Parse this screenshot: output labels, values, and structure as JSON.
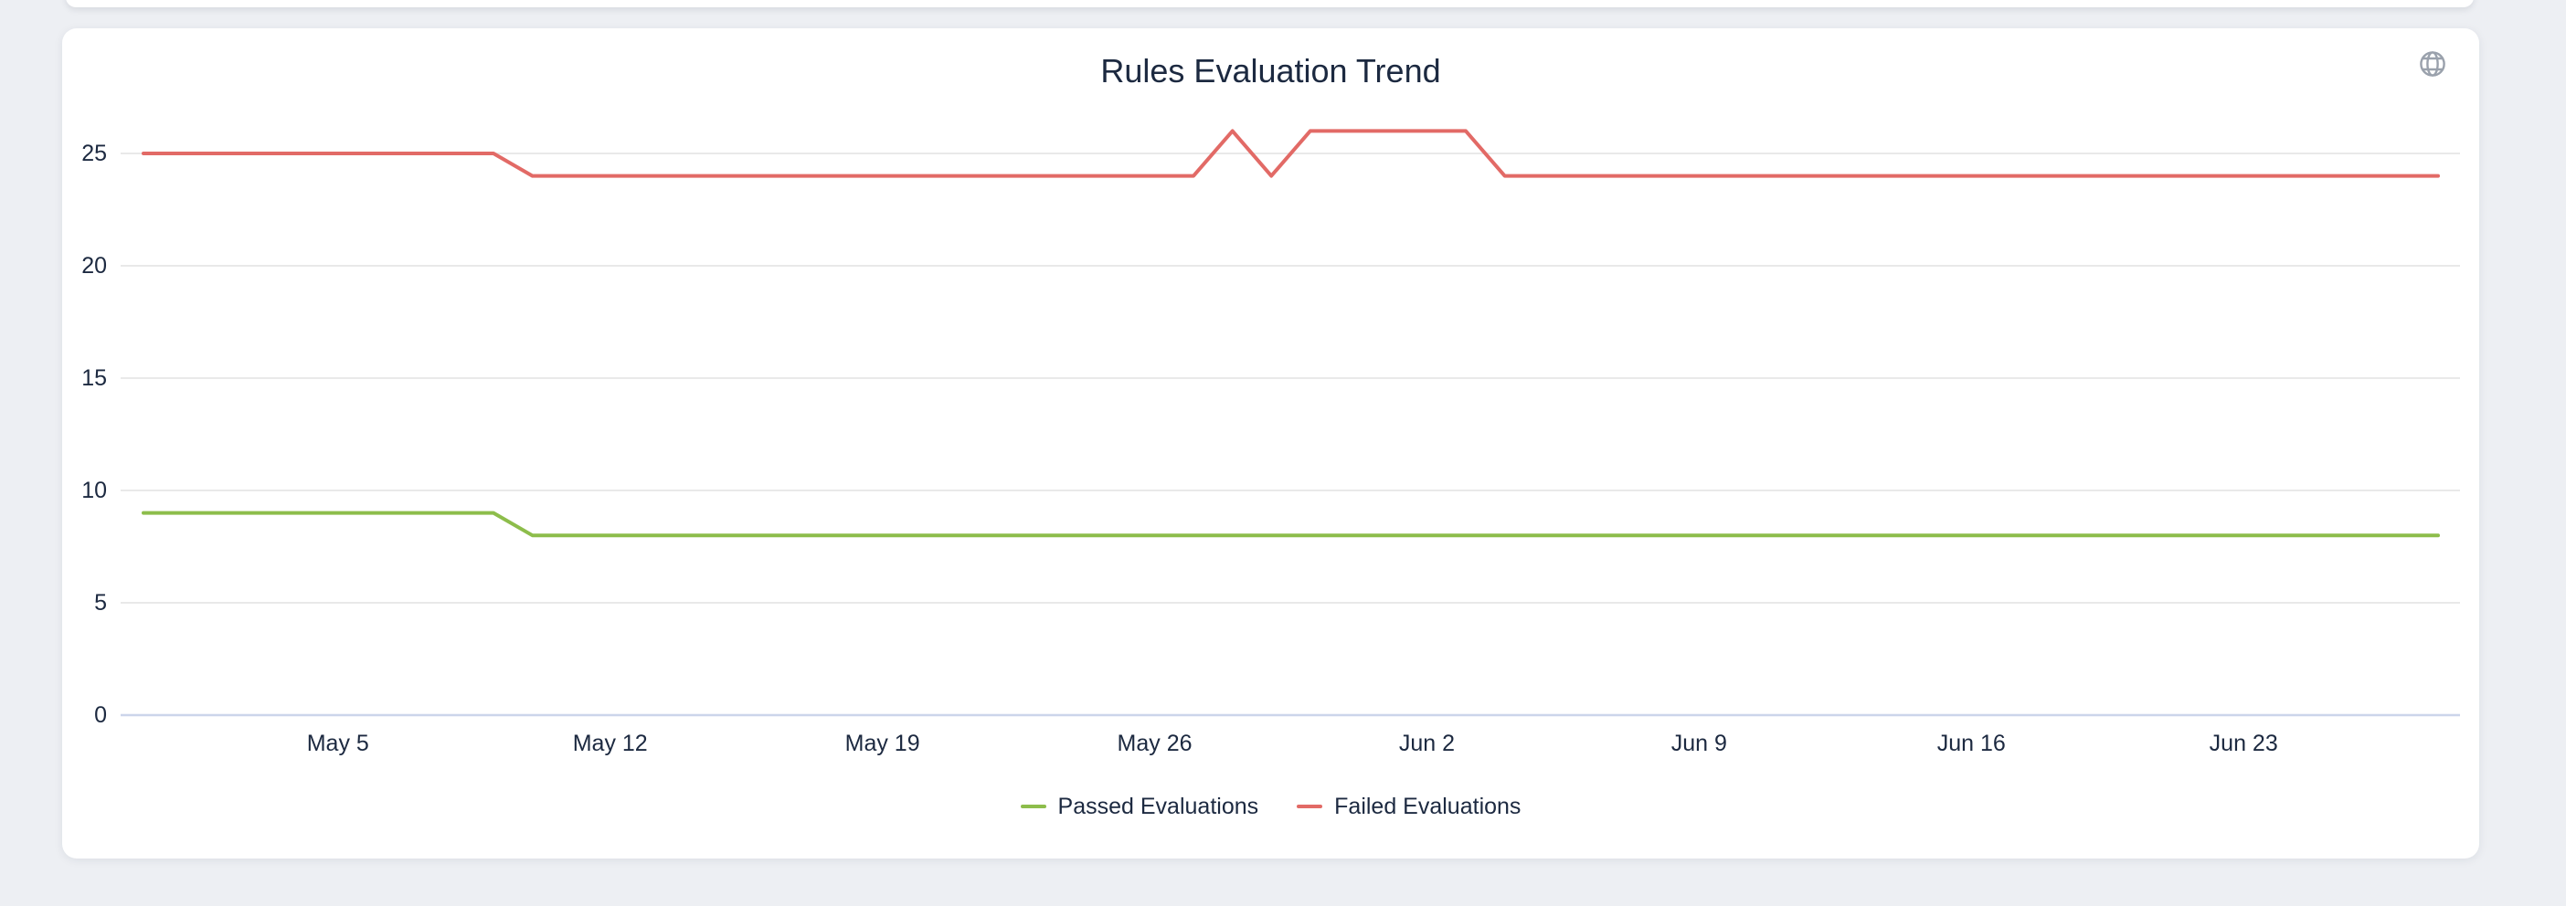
{
  "card": {
    "background": "#ffffff",
    "page_background": "#edeff3"
  },
  "header": {
    "globe_icon_color": "#9aa1ac"
  },
  "chart_data": {
    "type": "line",
    "title": "Rules Evaluation Trend",
    "xlabel": "",
    "ylabel": "",
    "grid": true,
    "legend_position": "bottom",
    "x_type": "time-daily",
    "ylim": [
      0,
      27.5
    ],
    "y_ticks": [
      0,
      5,
      10,
      15,
      20,
      25
    ],
    "tick_indices": [
      5,
      12,
      19,
      26,
      33,
      40,
      47,
      54
    ],
    "tick_labels": [
      "May 5",
      "May 12",
      "May 19",
      "May 26",
      "Jun 2",
      "Jun 9",
      "Jun 16",
      "Jun 23"
    ],
    "dates": [
      "Apr 30",
      "May 1",
      "May 2",
      "May 3",
      "May 4",
      "May 5",
      "May 6",
      "May 7",
      "May 8",
      "May 9",
      "May 10",
      "May 11",
      "May 12",
      "May 13",
      "May 14",
      "May 15",
      "May 16",
      "May 17",
      "May 18",
      "May 19",
      "May 20",
      "May 21",
      "May 22",
      "May 23",
      "May 24",
      "May 25",
      "May 26",
      "May 27",
      "May 28",
      "May 29",
      "May 30",
      "May 31",
      "Jun 1",
      "Jun 2",
      "Jun 3",
      "Jun 4",
      "Jun 5",
      "Jun 6",
      "Jun 7",
      "Jun 8",
      "Jun 9",
      "Jun 10",
      "Jun 11",
      "Jun 12",
      "Jun 13",
      "Jun 14",
      "Jun 15",
      "Jun 16",
      "Jun 17",
      "Jun 18",
      "Jun 19",
      "Jun 20",
      "Jun 21",
      "Jun 22",
      "Jun 23",
      "Jun 24",
      "Jun 25",
      "Jun 26",
      "Jun 27",
      "Jun 28"
    ],
    "series": [
      {
        "name": "Passed Evaluations",
        "color": "#8dbd4b",
        "values": [
          9,
          9,
          9,
          9,
          9,
          9,
          9,
          9,
          9,
          9,
          8,
          8,
          8,
          8,
          8,
          8,
          8,
          8,
          8,
          8,
          8,
          8,
          8,
          8,
          8,
          8,
          8,
          8,
          8,
          8,
          8,
          8,
          8,
          8,
          8,
          8,
          8,
          8,
          8,
          8,
          8,
          8,
          8,
          8,
          8,
          8,
          8,
          8,
          8,
          8,
          8,
          8,
          8,
          8,
          8,
          8,
          8,
          8,
          8,
          8
        ]
      },
      {
        "name": "Failed Evaluations",
        "color": "#e26a66",
        "values": [
          25,
          25,
          25,
          25,
          25,
          25,
          25,
          25,
          25,
          25,
          24,
          24,
          24,
          24,
          24,
          24,
          24,
          24,
          24,
          24,
          24,
          24,
          24,
          24,
          24,
          24,
          24,
          24,
          26,
          24,
          26,
          26,
          26,
          26,
          26,
          24,
          24,
          24,
          24,
          24,
          24,
          24,
          24,
          24,
          24,
          24,
          24,
          24,
          24,
          24,
          24,
          24,
          24,
          24,
          24,
          24,
          24,
          24,
          24,
          24
        ]
      }
    ],
    "style": {
      "gridline_color": "#e9e9e9",
      "axis_line_color": "#ccd5ea",
      "axis_label_color": "#1c2940",
      "line_width": 4
    }
  }
}
